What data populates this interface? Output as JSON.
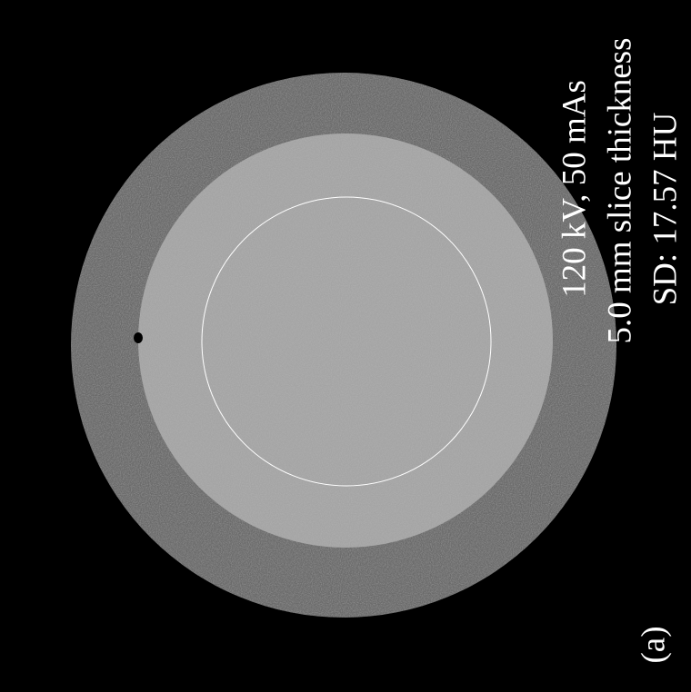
{
  "annotations": {
    "lines": [
      "120 kV, 50 mAs",
      "5.0 mm slice thickness",
      "SD: 17.57 HU"
    ],
    "panel_label": "(a)"
  }
}
